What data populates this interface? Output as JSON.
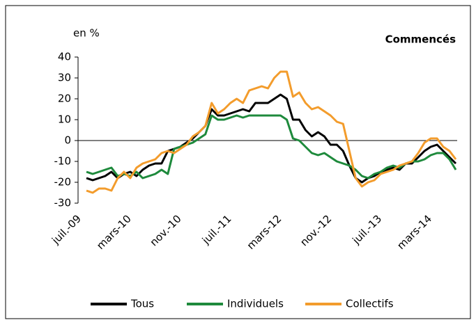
{
  "chart_data": {
    "type": "line",
    "title": "Commencés",
    "y_label": "en %",
    "categories": [
      "juil.-09",
      null,
      null,
      null,
      null,
      null,
      null,
      null,
      "mars-10",
      null,
      null,
      null,
      null,
      null,
      null,
      null,
      "nov.-10",
      null,
      null,
      null,
      null,
      null,
      null,
      null,
      "juil.-11",
      null,
      null,
      null,
      null,
      null,
      null,
      null,
      "mars-12",
      null,
      null,
      null,
      null,
      null,
      null,
      null,
      "nov.-12",
      null,
      null,
      null,
      null,
      null,
      null,
      null,
      "juil.-13",
      null,
      null,
      null,
      null,
      null,
      null,
      null,
      "mars-14",
      null,
      null,
      null
    ],
    "series": [
      {
        "name": "Tous",
        "color": "#000000",
        "values": [
          -18,
          -19,
          -18,
          -17,
          -15,
          -18,
          -16,
          -15,
          -17,
          -14,
          -12,
          -11,
          -11,
          -5,
          -4,
          -3,
          -1,
          1,
          4,
          7,
          15,
          12,
          12,
          13,
          14,
          15,
          14,
          18,
          18,
          18,
          20,
          22,
          20,
          10,
          10,
          5,
          2,
          4,
          2,
          -2,
          -2,
          -5,
          -12,
          -18,
          -20,
          -18,
          -17,
          -15,
          -14,
          -13,
          -14,
          -11,
          -11,
          -8,
          -5,
          -3,
          -2,
          -5,
          -8,
          -11
        ]
      },
      {
        "name": "Individuels",
        "color": "#1e8a3c",
        "values": [
          -15,
          -16,
          -15,
          -14,
          -13,
          -17,
          -16,
          -17,
          -15,
          -18,
          -17,
          -16,
          -14,
          -16,
          -4,
          -3,
          -2,
          -1,
          1,
          3,
          12,
          10,
          10,
          11,
          12,
          11,
          12,
          12,
          12,
          12,
          12,
          12,
          10,
          1,
          0,
          -3,
          -6,
          -7,
          -6,
          -8,
          -10,
          -11,
          -12,
          -14,
          -17,
          -18,
          -16,
          -15,
          -13,
          -12,
          -13,
          -11,
          -10,
          -10,
          -9,
          -7,
          -6,
          -6,
          -9,
          -14
        ]
      },
      {
        "name": "Collectifs",
        "color": "#f39c2c",
        "values": [
          -24,
          -25,
          -23,
          -23,
          -24,
          -18,
          -15,
          -18,
          -13,
          -11,
          -10,
          -9,
          -6,
          -5,
          -6,
          -4,
          -2,
          2,
          4,
          7,
          18,
          13,
          15,
          18,
          20,
          18,
          24,
          25,
          26,
          25,
          30,
          33,
          33,
          21,
          23,
          18,
          15,
          16,
          14,
          12,
          9,
          8,
          -5,
          -18,
          -22,
          -20,
          -19,
          -16,
          -15,
          -14,
          -12,
          -11,
          -10,
          -6,
          -1,
          1,
          1,
          -3,
          -5,
          -9
        ]
      }
    ],
    "ylim": [
      -30,
      40
    ],
    "yticks": [
      -30,
      -20,
      -10,
      0,
      10,
      20,
      30,
      40
    ]
  }
}
